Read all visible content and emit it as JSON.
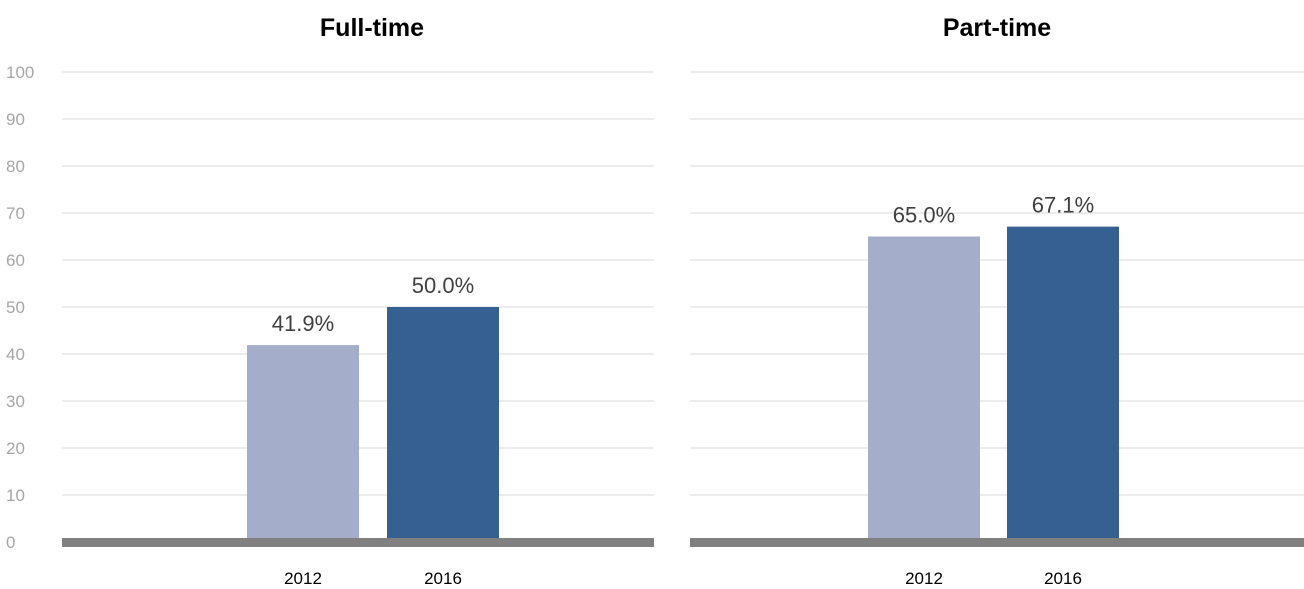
{
  "chart_data": [
    {
      "type": "bar",
      "title": "Full-time",
      "categories": [
        "2012",
        "2016"
      ],
      "values": [
        41.9,
        50.0
      ],
      "data_labels": [
        "41.9%",
        "50.0%"
      ],
      "ylim": [
        0,
        100
      ],
      "yticks": [
        "0",
        "10",
        "20",
        "30",
        "40",
        "50",
        "60",
        "70",
        "80",
        "90",
        "100"
      ],
      "grid": true,
      "colors": [
        "#a4adc9",
        "#366092"
      ]
    },
    {
      "type": "bar",
      "title": "Part-time",
      "categories": [
        "2012",
        "2016"
      ],
      "values": [
        65.0,
        67.1
      ],
      "data_labels": [
        "65.0%",
        "67.1%"
      ],
      "ylim": [
        0,
        100
      ],
      "grid": true,
      "colors": [
        "#a4adc9",
        "#366092"
      ]
    }
  ]
}
